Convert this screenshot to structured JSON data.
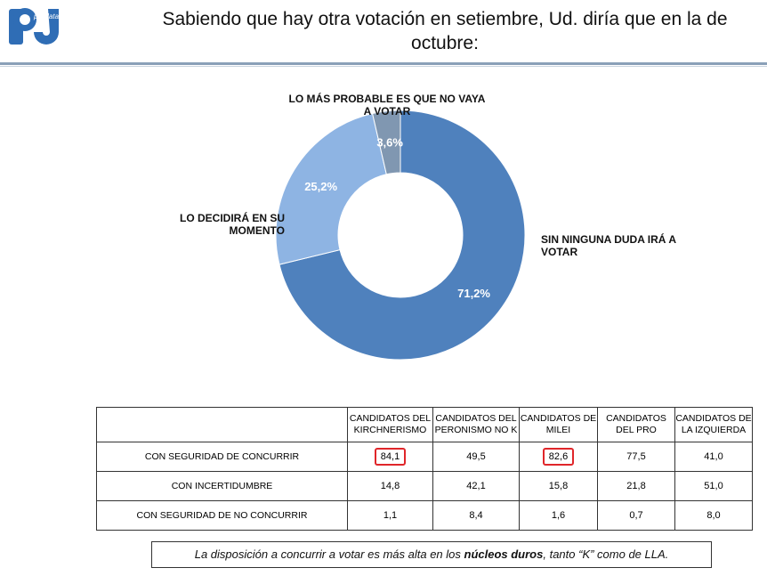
{
  "header": {
    "logo_text": "polldata",
    "title": "Sabiendo que hay otra votación en setiembre, Ud. diría que en la de octubre:"
  },
  "colors": {
    "slice_main": "#4f81bd",
    "slice_second": "#8eb4e3",
    "slice_third": "#8097b1",
    "highlight": "#e0262a",
    "rule": "#8aa0b8"
  },
  "chart_data": {
    "type": "pie",
    "variant": "donut",
    "slices": [
      {
        "label": "SIN NINGUNA DUDA IRÁ A VOTAR",
        "value": 71.2,
        "display": "71,2%",
        "color": "#4f81bd"
      },
      {
        "label": "LO DECIDIRÁ EN SU MOMENTO",
        "value": 25.2,
        "display": "25,2%",
        "color": "#8eb4e3"
      },
      {
        "label": "LO MÁS PROBABLE ES QUE NO VAYA A VOTAR",
        "value": 3.6,
        "display": "3,6%",
        "color": "#8097b1"
      }
    ]
  },
  "table": {
    "headers": [
      "CANDIDATOS DEL KIRCHNERISMO",
      "CANDIDATOS DEL PERONISMO NO K",
      "CANDIDATOS DE MILEI",
      "CANDIDATOS DEL PRO",
      "CANDIDATOS DE LA IZQUIERDA"
    ],
    "rows": [
      {
        "label": "CON SEGURIDAD DE  CONCURRIR",
        "values": [
          "84,1",
          "49,5",
          "82,6",
          "77,5",
          "41,0"
        ]
      },
      {
        "label": "CON INCERTIDUMBRE",
        "values": [
          "14,8",
          "42,1",
          "15,8",
          "21,8",
          "51,0"
        ]
      },
      {
        "label": "CON SEGURIDAD DE NO CONCURRIR",
        "values": [
          "1,1",
          "8,4",
          "1,6",
          "0,7",
          "8,0"
        ]
      }
    ],
    "highlighted": [
      "84,1",
      "82,6"
    ]
  },
  "note": {
    "pre": "La disposición a concurrir a votar es más alta en los ",
    "bold": "núcleos duros",
    "post": ", tanto “K” como de LLA."
  }
}
